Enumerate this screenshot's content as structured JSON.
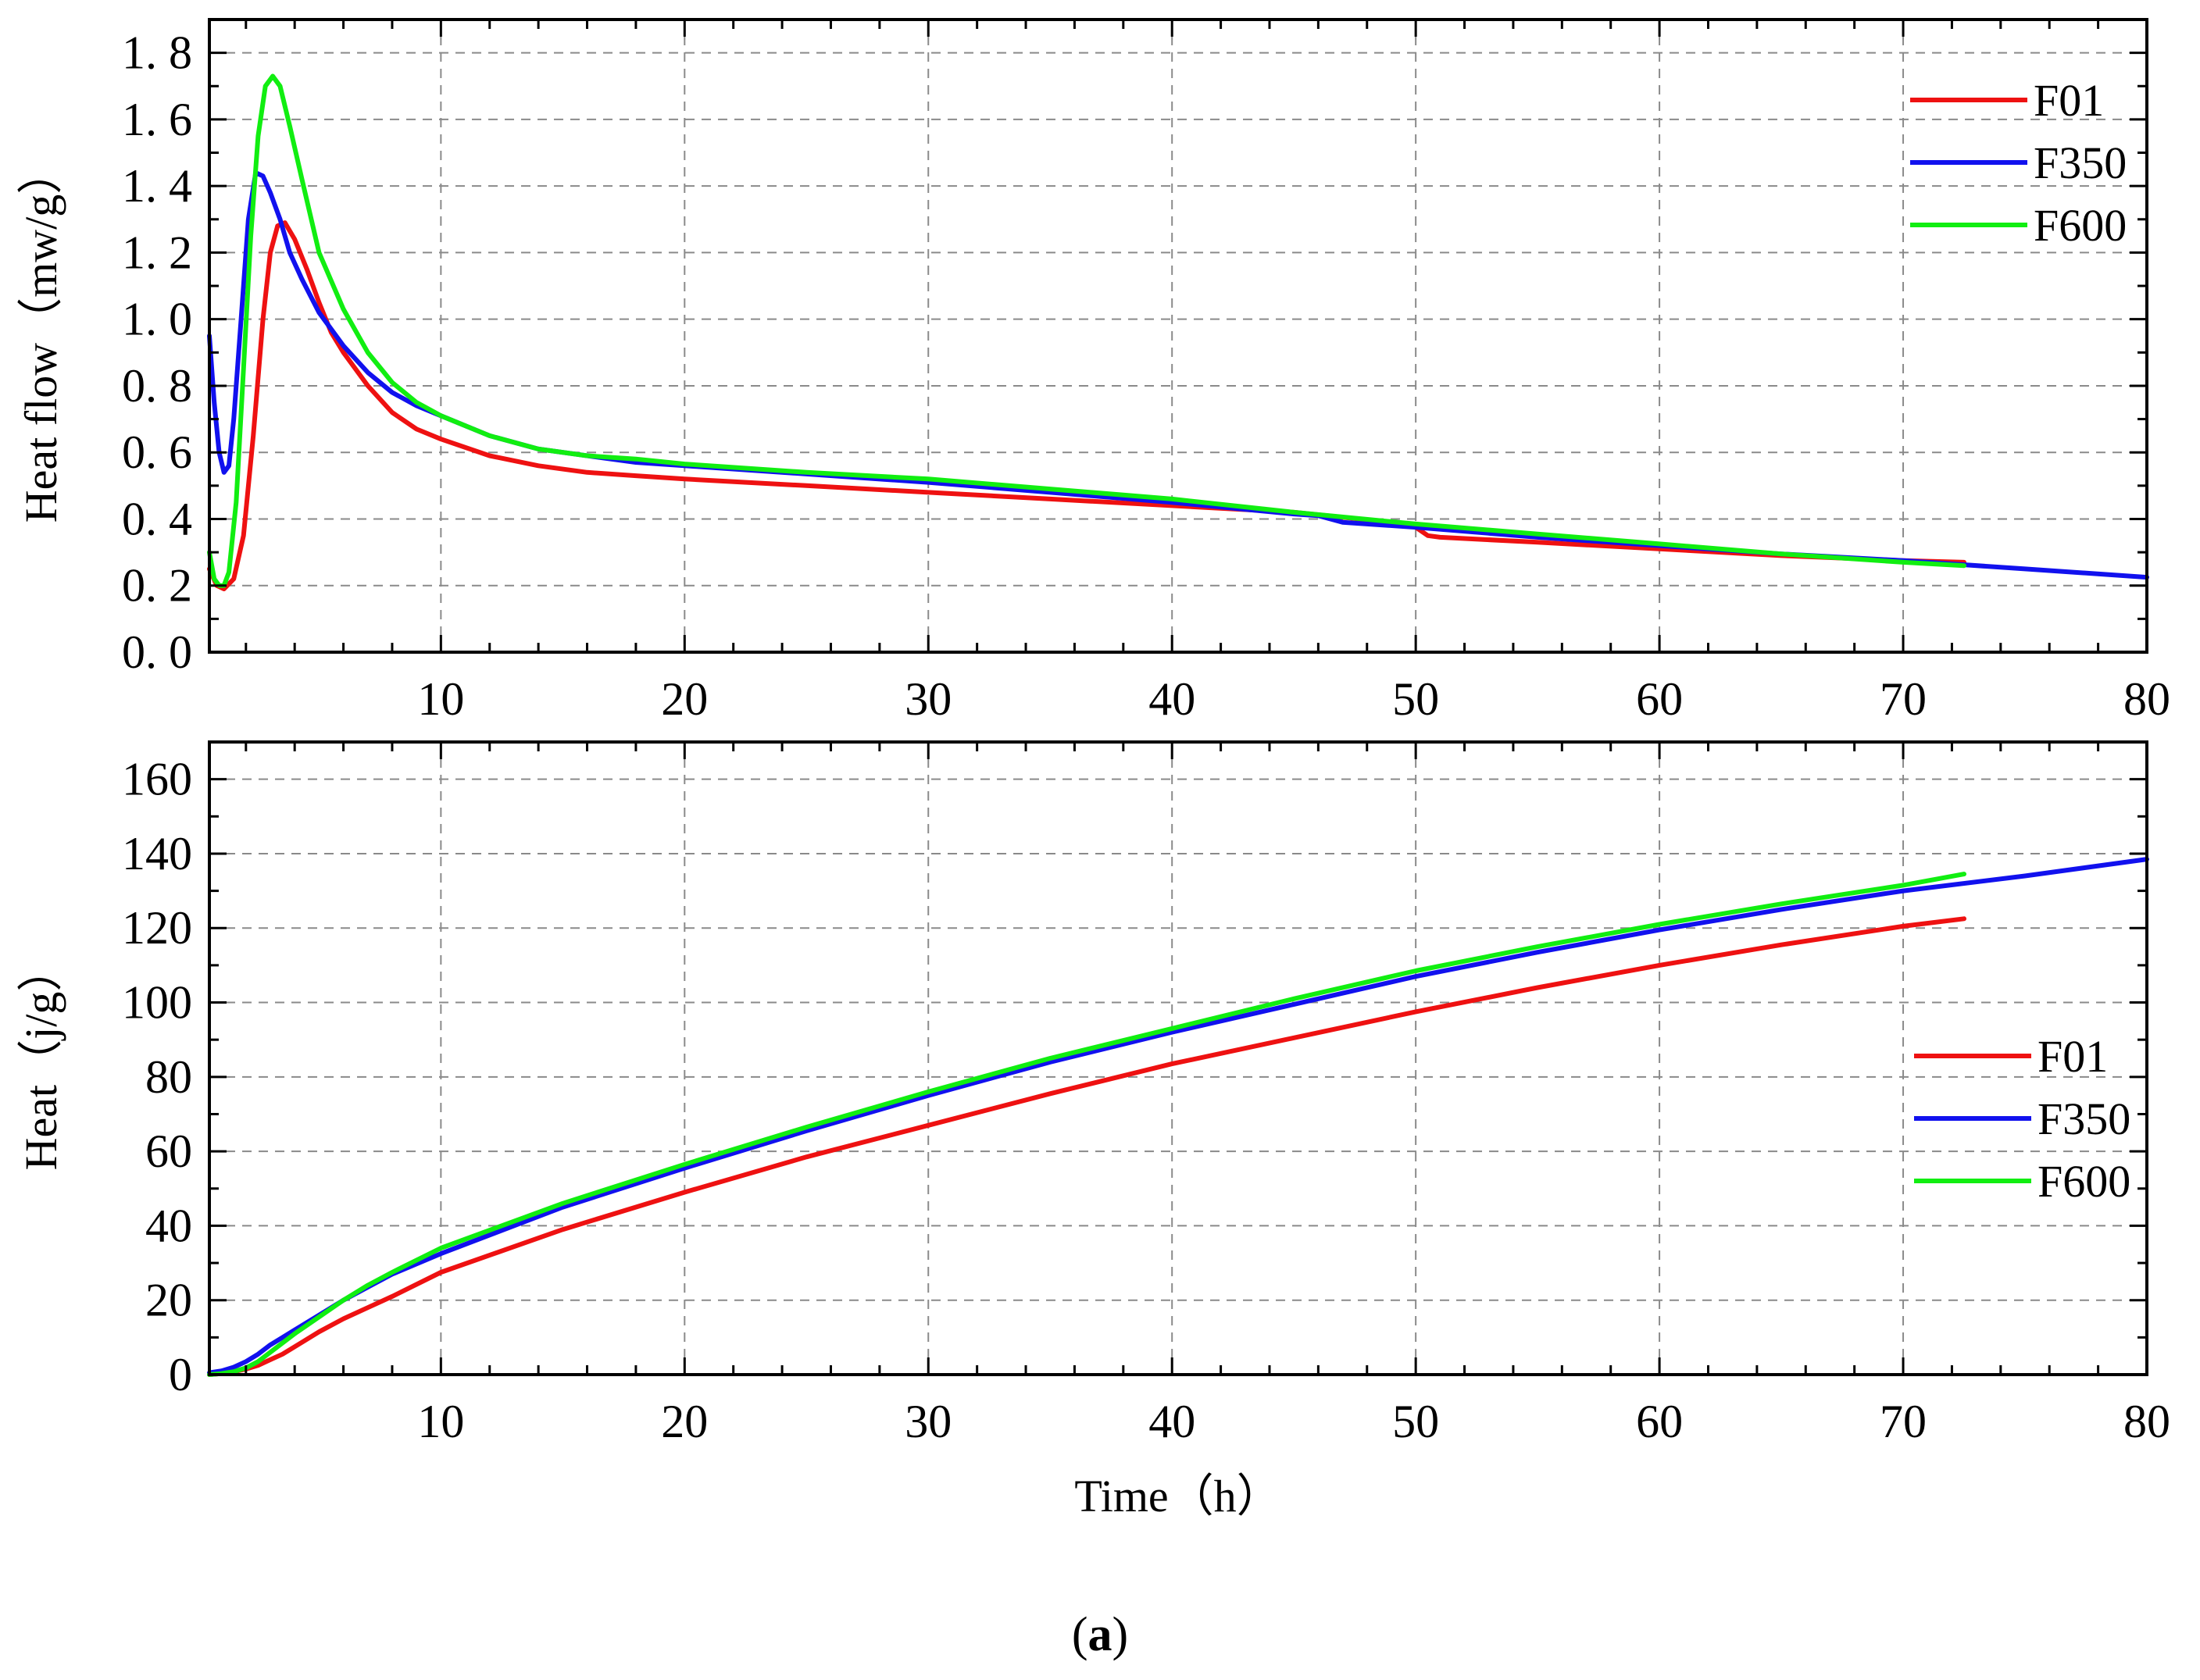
{
  "figure": {
    "panel_label": "a"
  },
  "colors": {
    "F01": "#ee1111",
    "F350": "#1111ee",
    "F600": "#11ee11",
    "grid": "#8a8a8a",
    "axis": "#000000"
  },
  "chart_data": [
    {
      "type": "line",
      "title": "",
      "xlabel": "",
      "ylabel": "Heat flow（mw/g）",
      "xlim": [
        0.5,
        80
      ],
      "ylim": [
        0,
        1.9
      ],
      "x_ticks": [
        10,
        20,
        30,
        40,
        50,
        60,
        70,
        80
      ],
      "x_tick_labels": [
        "10",
        "20",
        "30",
        "40",
        "50",
        "60",
        "70",
        "80"
      ],
      "y_ticks": [
        0,
        0.2,
        0.4,
        0.6,
        0.8,
        1.0,
        1.2,
        1.4,
        1.6,
        1.8
      ],
      "y_tick_labels": [
        "0. 0",
        "0. 2",
        "0. 4",
        "0. 6",
        "0. 8",
        "1. 0",
        "1. 2",
        "1. 4",
        "1. 6",
        "1. 8"
      ],
      "grid": true,
      "legend_position": "top-right",
      "series": [
        {
          "name": "F01",
          "x": [
            0.5,
            0.8,
            1.1,
            1.5,
            1.9,
            2.3,
            2.7,
            3.0,
            3.3,
            3.6,
            4.0,
            4.5,
            5.0,
            5.5,
            6.0,
            7.0,
            8.0,
            9.0,
            10,
            12,
            14,
            16,
            18,
            20,
            25,
            30,
            35,
            40,
            45,
            49,
            50,
            50.5,
            51,
            55,
            60,
            65,
            70,
            72.5
          ],
          "y": [
            0.25,
            0.2,
            0.19,
            0.22,
            0.35,
            0.65,
            1.0,
            1.2,
            1.28,
            1.29,
            1.24,
            1.15,
            1.05,
            0.96,
            0.9,
            0.8,
            0.72,
            0.67,
            0.64,
            0.59,
            0.56,
            0.54,
            0.53,
            0.52,
            0.5,
            0.48,
            0.46,
            0.44,
            0.42,
            0.39,
            0.375,
            0.35,
            0.345,
            0.33,
            0.31,
            0.29,
            0.275,
            0.27
          ]
        },
        {
          "name": "F350",
          "x": [
            0.5,
            0.7,
            0.9,
            1.1,
            1.3,
            1.5,
            1.8,
            2.1,
            2.4,
            2.7,
            3.0,
            3.4,
            3.8,
            4.3,
            5.0,
            6.0,
            7.0,
            8.0,
            9.0,
            10,
            12,
            14,
            16,
            18,
            20,
            25,
            30,
            35,
            40,
            45,
            46,
            47,
            50,
            55,
            60,
            65,
            70,
            75,
            80
          ],
          "y": [
            0.95,
            0.75,
            0.6,
            0.54,
            0.56,
            0.7,
            1.0,
            1.3,
            1.44,
            1.43,
            1.38,
            1.3,
            1.2,
            1.12,
            1.02,
            0.92,
            0.84,
            0.78,
            0.74,
            0.71,
            0.65,
            0.61,
            0.59,
            0.57,
            0.56,
            0.535,
            0.51,
            0.48,
            0.45,
            0.415,
            0.41,
            0.39,
            0.375,
            0.345,
            0.32,
            0.295,
            0.275,
            0.25,
            0.225
          ]
        },
        {
          "name": "F600",
          "x": [
            0.5,
            0.7,
            0.9,
            1.1,
            1.3,
            1.6,
            1.9,
            2.2,
            2.5,
            2.8,
            3.1,
            3.4,
            3.8,
            4.3,
            5.0,
            6.0,
            7.0,
            8.0,
            9.0,
            10,
            12,
            14,
            16,
            18,
            20,
            25,
            30,
            35,
            40,
            45,
            50,
            55,
            60,
            65,
            70,
            72.5
          ],
          "y": [
            0.3,
            0.22,
            0.2,
            0.2,
            0.24,
            0.45,
            0.85,
            1.25,
            1.55,
            1.7,
            1.73,
            1.7,
            1.58,
            1.42,
            1.2,
            1.03,
            0.9,
            0.81,
            0.75,
            0.71,
            0.65,
            0.61,
            0.59,
            0.58,
            0.565,
            0.54,
            0.52,
            0.49,
            0.46,
            0.42,
            0.385,
            0.355,
            0.325,
            0.295,
            0.27,
            0.26
          ]
        }
      ]
    },
    {
      "type": "line",
      "title": "",
      "xlabel": "Time（h）",
      "ylabel": "Heat（j/g）",
      "xlim": [
        0.5,
        80
      ],
      "ylim": [
        0,
        170
      ],
      "x_ticks": [
        10,
        20,
        30,
        40,
        50,
        60,
        70,
        80
      ],
      "x_tick_labels": [
        "10",
        "20",
        "30",
        "40",
        "50",
        "60",
        "70",
        "80"
      ],
      "y_ticks": [
        0,
        20,
        40,
        60,
        80,
        100,
        120,
        140,
        160
      ],
      "y_tick_labels": [
        "0",
        "20",
        "40",
        "60",
        "80",
        "100",
        "120",
        "140",
        "160"
      ],
      "grid": true,
      "legend_position": "center-right",
      "series": [
        {
          "name": "F01",
          "x": [
            0.5,
            1,
            1.5,
            2,
            2.5,
            3,
            3.5,
            4,
            5,
            6,
            7,
            8,
            10,
            15,
            20,
            25,
            30,
            35,
            40,
            45,
            50,
            55,
            60,
            65,
            70,
            72.5
          ],
          "y": [
            0,
            0.3,
            0.8,
            1.5,
            2.5,
            4,
            5.5,
            7.5,
            11.5,
            15,
            18,
            21,
            27.5,
            39,
            49,
            58.5,
            67,
            75.5,
            83.5,
            90.5,
            97.5,
            104,
            110,
            115.5,
            120.5,
            122.5
          ]
        },
        {
          "name": "F350",
          "x": [
            0.5,
            1,
            1.5,
            2,
            2.5,
            3,
            3.5,
            4,
            5,
            6,
            7,
            8,
            10,
            15,
            20,
            25,
            30,
            35,
            40,
            45,
            50,
            55,
            60,
            65,
            70,
            75,
            80
          ],
          "y": [
            0.5,
            1,
            2,
            3.5,
            5.5,
            8,
            10,
            12,
            16,
            20,
            23.5,
            27,
            32.5,
            45,
            55.5,
            65.5,
            75,
            84,
            92,
            99.5,
            107,
            113.5,
            119.5,
            125,
            130,
            134,
            138.5
          ]
        },
        {
          "name": "F600",
          "x": [
            0.5,
            1,
            1.5,
            2,
            2.5,
            3,
            3.5,
            4,
            5,
            6,
            7,
            8,
            10,
            15,
            20,
            25,
            30,
            35,
            40,
            45,
            50,
            55,
            60,
            65,
            70,
            72.5
          ],
          "y": [
            0,
            0.3,
            0.8,
            1.8,
            3.5,
            6,
            8.5,
            11,
            15.5,
            20,
            24,
            27.5,
            34,
            46,
            56.5,
            66.5,
            76,
            85,
            93,
            101,
            108.5,
            115,
            121,
            126.5,
            131.5,
            134.5
          ]
        }
      ]
    }
  ]
}
